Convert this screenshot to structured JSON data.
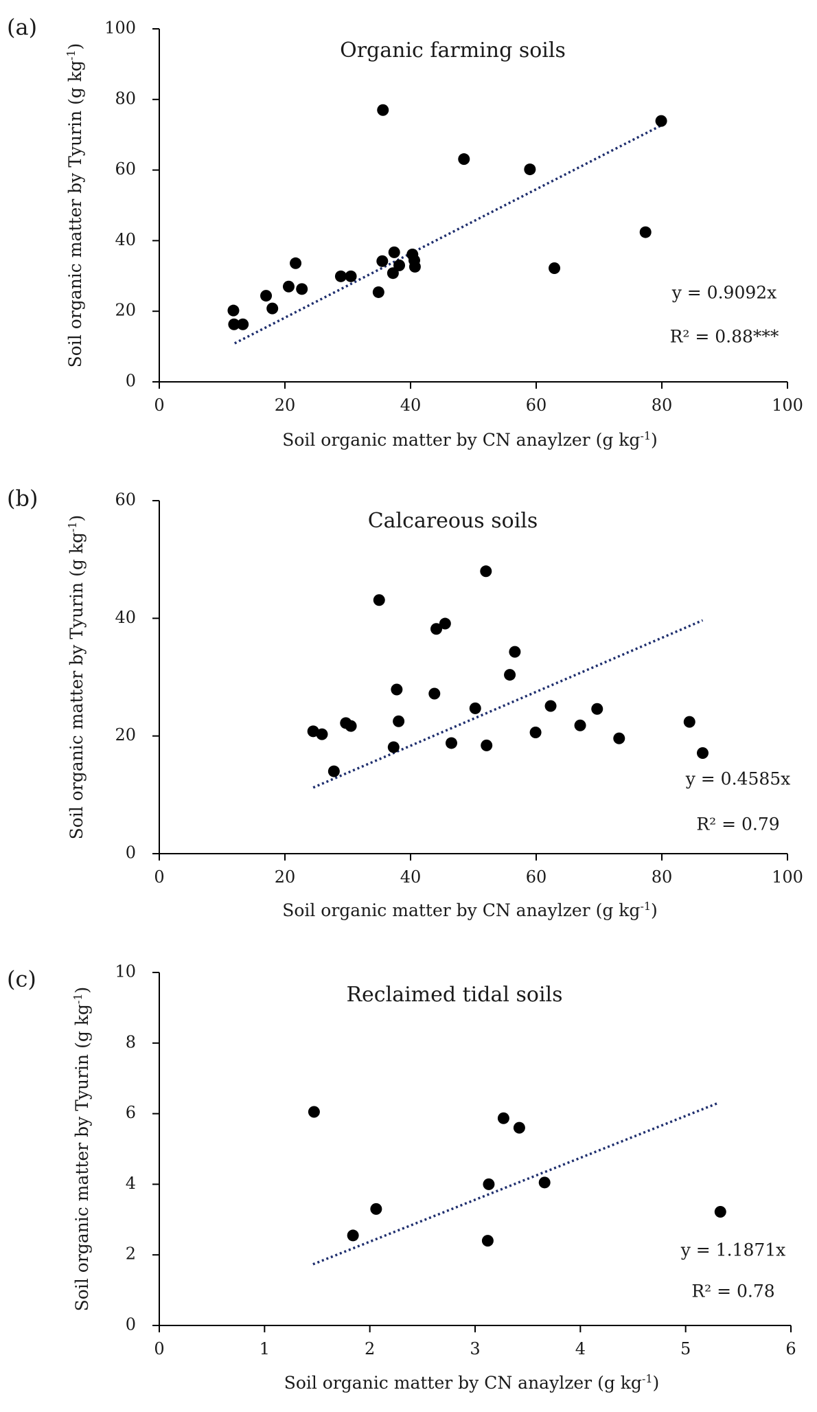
{
  "chart_data": [
    {
      "panel": "(a)",
      "type": "scatter",
      "title": "Organic farming soils",
      "xlabel": "Soil organic matter by CN anaylzer (g kg",
      "xlabel_sup": "-1",
      "xlabel_end": ")",
      "ylabel": "Soil organic matter by Tyurin (g kg",
      "ylabel_sup": "-1",
      "ylabel_end": ")",
      "xlim": [
        0,
        100
      ],
      "ylim": [
        0,
        100
      ],
      "xticks": [
        0,
        20,
        40,
        60,
        80,
        100
      ],
      "yticks": [
        0,
        20,
        40,
        60,
        80,
        100
      ],
      "equation": "y = 0.9092x",
      "r2": "R² = 0.88***",
      "trend": {
        "slope": 0.9092,
        "x_range": [
          12,
          80
        ]
      },
      "points": [
        [
          11.8,
          20.2
        ],
        [
          11.9,
          16.3
        ],
        [
          13.3,
          16.3
        ],
        [
          17.0,
          24.4
        ],
        [
          18.0,
          20.8
        ],
        [
          20.6,
          27.0
        ],
        [
          21.7,
          33.6
        ],
        [
          22.7,
          26.3
        ],
        [
          28.9,
          29.9
        ],
        [
          30.5,
          29.9
        ],
        [
          34.9,
          25.4
        ],
        [
          35.5,
          34.2
        ],
        [
          35.6,
          77.0
        ],
        [
          37.2,
          30.8
        ],
        [
          37.4,
          36.7
        ],
        [
          38.2,
          33.0
        ],
        [
          40.3,
          36.1
        ],
        [
          40.6,
          34.4
        ],
        [
          40.7,
          32.6
        ],
        [
          48.5,
          63.1
        ],
        [
          59.0,
          60.2
        ],
        [
          62.9,
          32.2
        ],
        [
          77.4,
          42.4
        ],
        [
          79.9,
          73.9
        ]
      ]
    },
    {
      "panel": "(b)",
      "type": "scatter",
      "title": "Calcareous soils",
      "xlabel": "Soil organic matter by CN anaylzer (g kg",
      "xlabel_sup": "-1",
      "xlabel_end": ")",
      "ylabel": "Soil organic matter by Tyurin (g kg",
      "ylabel_sup": "-1",
      "ylabel_end": ")",
      "xlim": [
        0,
        100
      ],
      "ylim": [
        0,
        60
      ],
      "xticks": [
        0,
        20,
        40,
        60,
        80,
        100
      ],
      "yticks": [
        0,
        20,
        40,
        60
      ],
      "equation": "y = 0.4585x",
      "r2": "R² = 0.79",
      "trend": {
        "slope": 0.4585,
        "x_range": [
          24.5,
          86.5
        ]
      },
      "points": [
        [
          24.5,
          20.8
        ],
        [
          25.9,
          20.3
        ],
        [
          27.8,
          14.0
        ],
        [
          29.7,
          22.2
        ],
        [
          30.5,
          21.7
        ],
        [
          35.0,
          43.1
        ],
        [
          37.3,
          18.1
        ],
        [
          37.8,
          27.9
        ],
        [
          38.1,
          22.5
        ],
        [
          43.8,
          27.2
        ],
        [
          44.1,
          38.2
        ],
        [
          45.5,
          39.1
        ],
        [
          46.5,
          18.8
        ],
        [
          50.3,
          24.7
        ],
        [
          52.0,
          48.0
        ],
        [
          52.1,
          18.4
        ],
        [
          55.8,
          30.4
        ],
        [
          56.6,
          34.3
        ],
        [
          59.9,
          20.6
        ],
        [
          62.3,
          25.1
        ],
        [
          67.0,
          21.8
        ],
        [
          69.7,
          24.6
        ],
        [
          73.2,
          19.6
        ],
        [
          84.4,
          22.4
        ],
        [
          86.5,
          17.1
        ]
      ]
    },
    {
      "panel": "(c)",
      "type": "scatter",
      "title": "Reclaimed tidal soils",
      "xlabel": "Soil organic matter by CN anaylzer (g kg",
      "xlabel_sup": "-1",
      "xlabel_end": ")",
      "ylabel": "Soil organic matter by Tyurin (g kg",
      "ylabel_sup": "-1",
      "ylabel_end": ")",
      "xlim": [
        0,
        6
      ],
      "ylim": [
        0,
        10
      ],
      "xticks": [
        0,
        1,
        2,
        3,
        4,
        5,
        6
      ],
      "yticks": [
        0,
        2,
        4,
        6,
        8,
        10
      ],
      "equation": "y = 1.1871x",
      "r2": "R² = 0.78",
      "trend": {
        "slope": 1.1871,
        "x_range": [
          1.46,
          5.32
        ]
      },
      "points": [
        [
          1.47,
          6.05
        ],
        [
          1.84,
          2.55
        ],
        [
          2.06,
          3.3
        ],
        [
          3.12,
          2.4
        ],
        [
          3.13,
          4.0
        ],
        [
          3.27,
          5.87
        ],
        [
          3.42,
          5.6
        ],
        [
          3.66,
          4.05
        ],
        [
          5.33,
          3.22
        ]
      ]
    }
  ]
}
